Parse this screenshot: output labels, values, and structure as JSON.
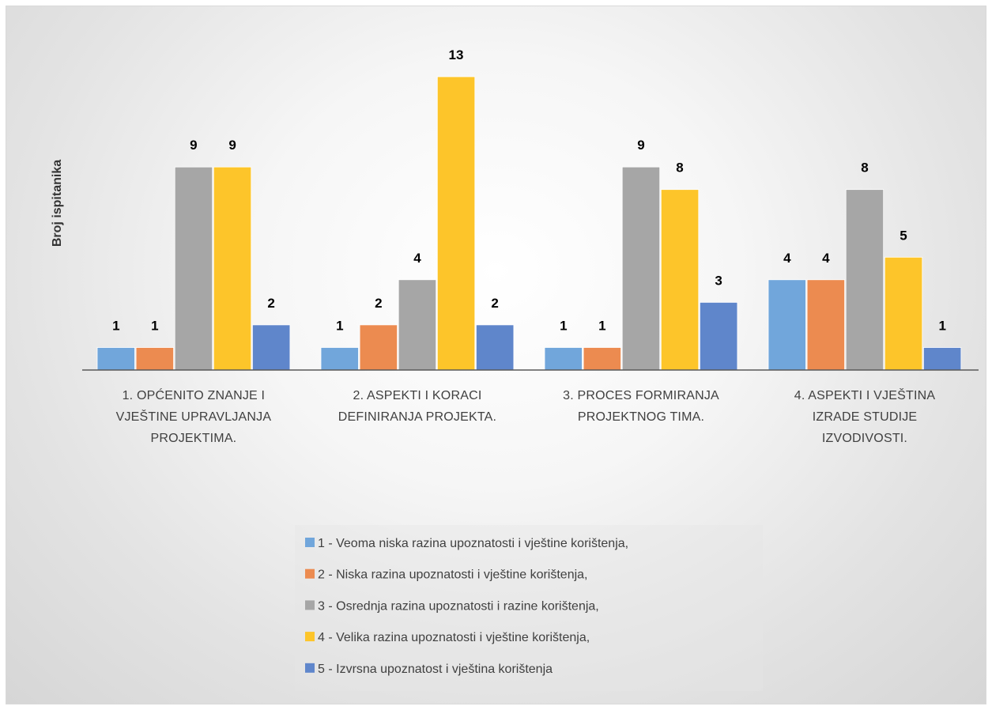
{
  "chart_data": {
    "type": "bar",
    "title": "",
    "ylabel": "Broj ispitanika",
    "xlabel": "",
    "ylim": [
      0,
      13
    ],
    "grid": false,
    "legend_position": "bottom",
    "categories": [
      [
        "1. OPĆENITO ZNANJE I",
        "VJEŠTINE UPRAVLJANJA",
        "PROJEKTIMA."
      ],
      [
        "2. ASPEKTI I KORACI",
        "DEFINIRANJA PROJEKTA."
      ],
      [
        "3. PROCES FORMIRANJA",
        "PROJEKTNOG TIMA."
      ],
      [
        "4. ASPEKTI I VJEŠTINA",
        "IZRADE STUDIJE",
        "IZVODIVOSTI."
      ]
    ],
    "series": [
      {
        "name": "1 - Veoma niska razina upoznatosti i vještine korištenja,",
        "color": "#71a6db",
        "values": [
          1,
          1,
          1,
          4
        ]
      },
      {
        "name": "2 - Niska razina upoznatosti i vještine korištenja,",
        "color": "#ec8b50",
        "values": [
          1,
          2,
          1,
          4
        ]
      },
      {
        "name": "3 - Osrednja razina upoznatosti i razine korištenja,",
        "color": "#a6a6a6",
        "values": [
          9,
          4,
          9,
          8
        ]
      },
      {
        "name": "4 - Velika razina upoznatosti i vještine korištenja,",
        "color": "#fdc52a",
        "values": [
          9,
          13,
          8,
          5
        ]
      },
      {
        "name": "5 - Izvrsna upoznatost i vještina korištenja",
        "color": "#5f86cb",
        "values": [
          2,
          2,
          3,
          1
        ]
      }
    ]
  }
}
